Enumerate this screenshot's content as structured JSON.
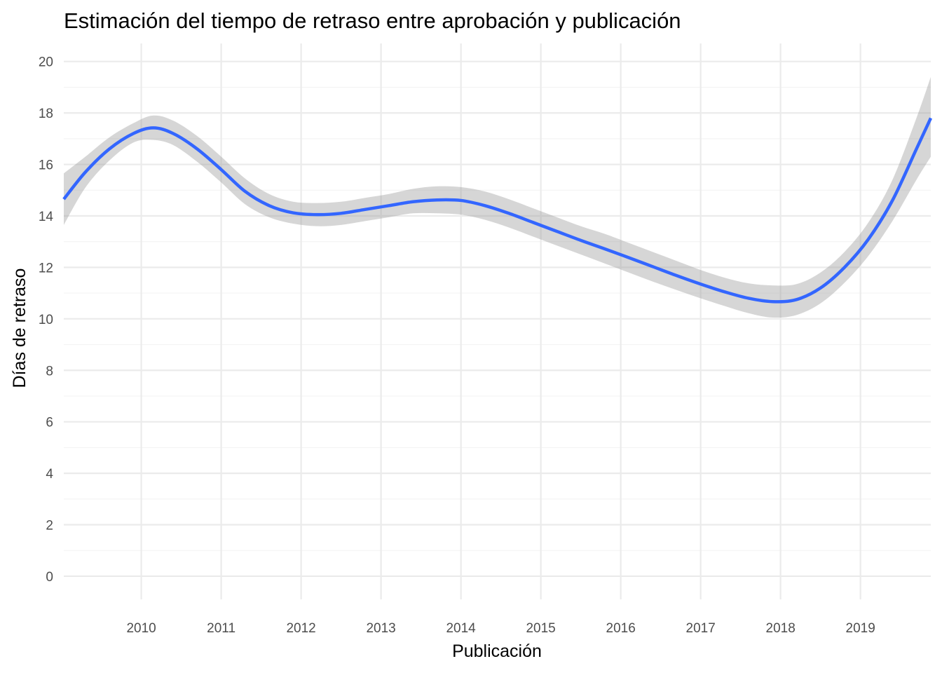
{
  "chart_data": {
    "type": "line",
    "title": "Estimación del tiempo de retraso entre aprobación y publicación",
    "xlabel": "Publicación",
    "ylabel": "Días de retraso",
    "x_ticks": [
      "2010",
      "2011",
      "2012",
      "2013",
      "2014",
      "2015",
      "2016",
      "2017",
      "2018",
      "2019"
    ],
    "y_ticks": [
      "0",
      "2",
      "4",
      "6",
      "8",
      "10",
      "12",
      "14",
      "16",
      "18",
      "20"
    ],
    "xlim": [
      2009.03,
      2019.88
    ],
    "ylim": [
      -0.9,
      20.7
    ],
    "grid": true,
    "legend": "none",
    "colors": {
      "line": "#3366FF",
      "band": "#999999"
    },
    "series": [
      {
        "x": [
          2009.03,
          2009.3,
          2009.6,
          2009.9,
          2010.15,
          2010.4,
          2010.7,
          2011.0,
          2011.3,
          2011.6,
          2011.9,
          2012.2,
          2012.5,
          2012.8,
          2013.1,
          2013.4,
          2013.7,
          2014.0,
          2014.3,
          2014.6,
          2014.9,
          2015.2,
          2015.5,
          2015.8,
          2016.1,
          2016.4,
          2016.7,
          2017.0,
          2017.3,
          2017.6,
          2017.9,
          2018.2,
          2018.5,
          2018.8,
          2019.1,
          2019.4,
          2019.7,
          2019.88
        ],
        "y": [
          14.65,
          15.7,
          16.6,
          17.2,
          17.42,
          17.2,
          16.6,
          15.8,
          14.95,
          14.4,
          14.12,
          14.05,
          14.1,
          14.25,
          14.4,
          14.55,
          14.62,
          14.6,
          14.4,
          14.1,
          13.75,
          13.4,
          13.05,
          12.72,
          12.38,
          12.03,
          11.68,
          11.35,
          11.05,
          10.8,
          10.67,
          10.75,
          11.2,
          12.0,
          13.1,
          14.6,
          16.6,
          17.8
        ],
        "lower": [
          13.65,
          15.1,
          16.15,
          16.85,
          16.95,
          16.75,
          16.1,
          15.3,
          14.45,
          13.95,
          13.7,
          13.6,
          13.65,
          13.8,
          13.95,
          14.1,
          14.1,
          14.05,
          13.85,
          13.55,
          13.2,
          12.85,
          12.5,
          12.15,
          11.8,
          11.45,
          11.12,
          10.8,
          10.5,
          10.22,
          10.05,
          10.15,
          10.6,
          11.4,
          12.45,
          13.8,
          15.4,
          16.3
        ],
        "upper": [
          15.65,
          16.3,
          17.05,
          17.6,
          17.9,
          17.7,
          17.1,
          16.3,
          15.45,
          14.85,
          14.55,
          14.5,
          14.55,
          14.7,
          14.85,
          15.05,
          15.15,
          15.12,
          14.95,
          14.65,
          14.3,
          13.95,
          13.6,
          13.3,
          12.95,
          12.6,
          12.25,
          11.9,
          11.6,
          11.38,
          11.3,
          11.35,
          11.8,
          12.6,
          13.75,
          15.4,
          17.8,
          19.4
        ]
      }
    ]
  }
}
